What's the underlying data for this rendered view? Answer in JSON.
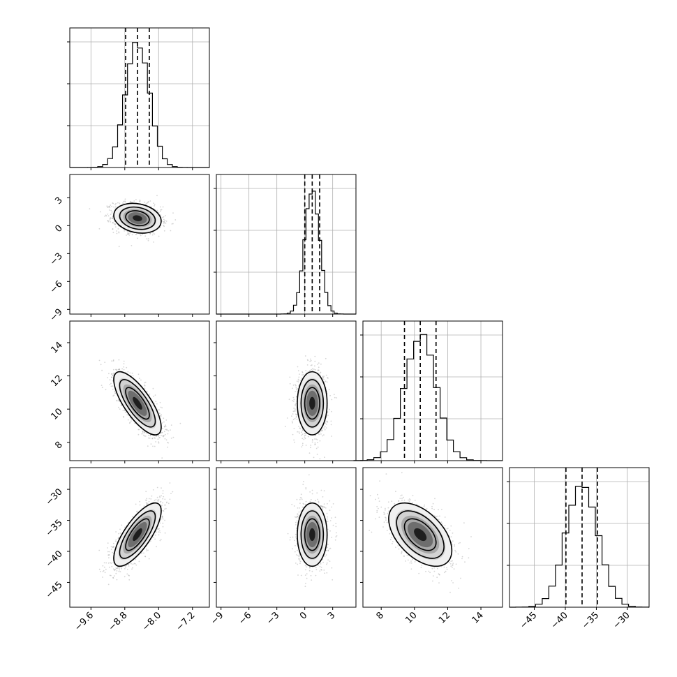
{
  "chart_data": {
    "type": "corner",
    "grid": true,
    "parameters": [
      {
        "range": [
          -10.1,
          -6.8
        ],
        "ticks": [
          -9.6,
          -8.8,
          -8.0,
          -7.2
        ],
        "tick_labels": [
          "−9.6",
          "−8.8",
          "−8.0",
          "−7.2"
        ],
        "quantiles": [
          -8.78,
          -8.5,
          -8.22
        ],
        "mean": -8.5,
        "sd": 0.28
      },
      {
        "range": [
          -9.5,
          5.5
        ],
        "ticks": [
          -9,
          -6,
          -3,
          0,
          3
        ],
        "tick_labels": [
          "−9",
          "−6",
          "−3",
          "0",
          "3"
        ],
        "quantiles": [
          0.0,
          0.8,
          1.6
        ],
        "mean": 0.8,
        "sd": 0.8
      },
      {
        "range": [
          6.9,
          15.3
        ],
        "ticks": [
          8,
          10,
          12,
          14
        ],
        "tick_labels": [
          "8",
          "10",
          "12",
          "14"
        ],
        "quantiles": [
          9.4,
          10.35,
          11.3
        ],
        "mean": 10.35,
        "sd": 0.95
      },
      {
        "range": [
          -49,
          -26.5
        ],
        "ticks": [
          -45,
          -40,
          -35,
          -30
        ],
        "tick_labels": [
          "−45",
          "−40",
          "−35",
          "−30"
        ],
        "quantiles": [
          -39.9,
          -37.3,
          -34.8
        ],
        "mean": -37.3,
        "sd": 2.55
      }
    ],
    "correlations": [
      {
        "pair": [
          1,
          0
        ],
        "rho": -0.2
      },
      {
        "pair": [
          2,
          0
        ],
        "rho": -0.75
      },
      {
        "pair": [
          2,
          1
        ],
        "rho": 0.0
      },
      {
        "pair": [
          3,
          0
        ],
        "rho": 0.75
      },
      {
        "pair": [
          3,
          1
        ],
        "rho": 0.0
      },
      {
        "pair": [
          3,
          2
        ],
        "rho": -0.5
      }
    ]
  }
}
